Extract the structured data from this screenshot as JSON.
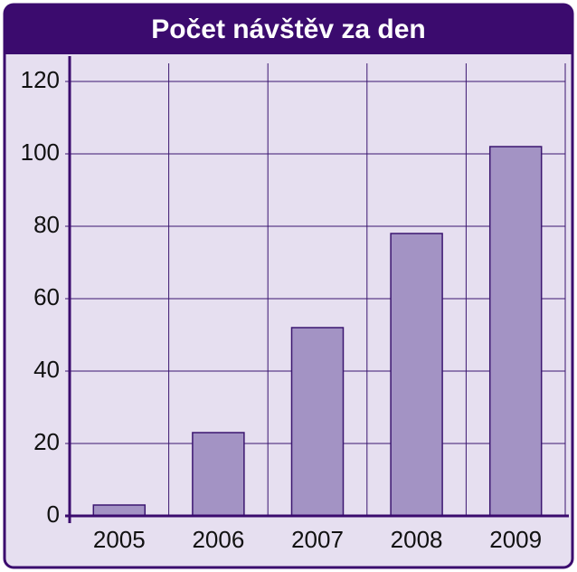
{
  "chart_data": {
    "type": "bar",
    "title": "Počet návštěv za den",
    "categories": [
      "2005",
      "2006",
      "2007",
      "2008",
      "2009"
    ],
    "values": [
      3,
      23,
      52,
      78,
      102
    ],
    "color": "#a393c4",
    "ylim": [
      0,
      125
    ],
    "yticks": [
      0,
      20,
      40,
      60,
      80,
      100,
      120
    ],
    "grid": true
  }
}
